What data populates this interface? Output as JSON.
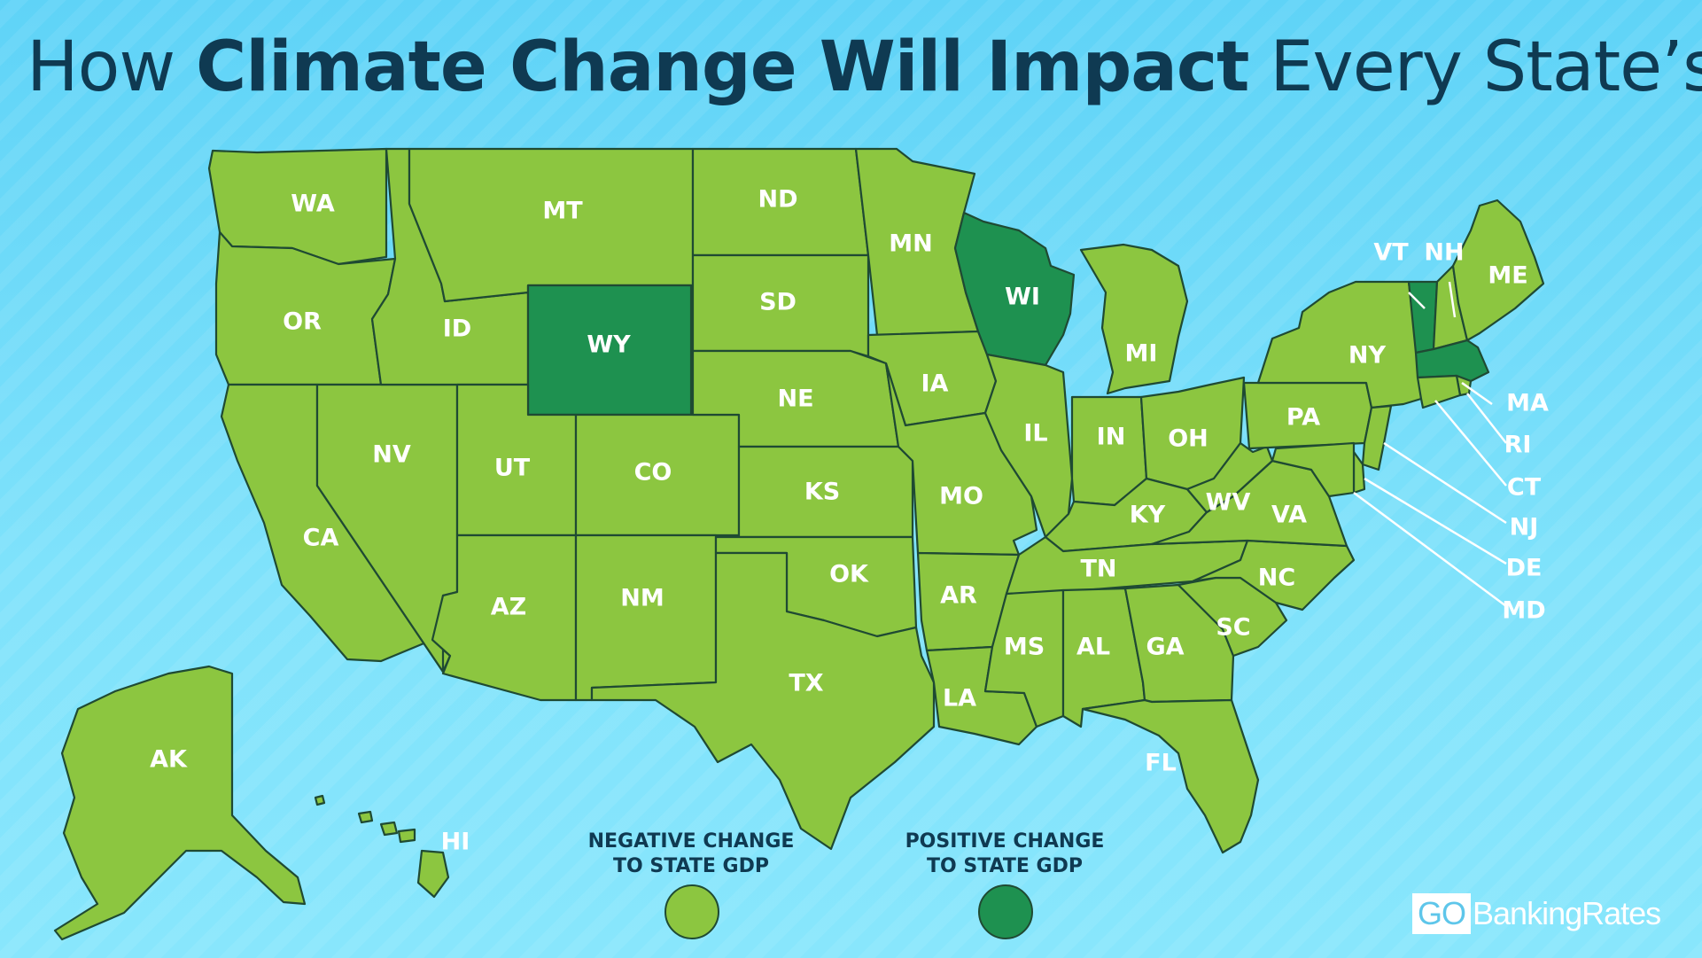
{
  "title": {
    "prefix": "How ",
    "emphasis": "Climate Change Will Impact",
    "suffix": " Every State’s GDP"
  },
  "colors": {
    "negative": "#8cc640",
    "positive": "#1e9150",
    "border": "#1f4a33",
    "background": "#6fdcf9",
    "title": "#0f3a52"
  },
  "legend": {
    "negative": {
      "line1": "NEGATIVE CHANGE",
      "line2": "TO STATE GDP"
    },
    "positive": {
      "line1": "POSITIVE CHANGE",
      "line2": "TO STATE GDP"
    }
  },
  "states": [
    {
      "code": "WA",
      "impact": "negative"
    },
    {
      "code": "OR",
      "impact": "negative"
    },
    {
      "code": "CA",
      "impact": "negative"
    },
    {
      "code": "NV",
      "impact": "negative"
    },
    {
      "code": "ID",
      "impact": "negative"
    },
    {
      "code": "MT",
      "impact": "negative"
    },
    {
      "code": "WY",
      "impact": "positive"
    },
    {
      "code": "UT",
      "impact": "negative"
    },
    {
      "code": "CO",
      "impact": "negative"
    },
    {
      "code": "AZ",
      "impact": "negative"
    },
    {
      "code": "NM",
      "impact": "negative"
    },
    {
      "code": "ND",
      "impact": "negative"
    },
    {
      "code": "SD",
      "impact": "negative"
    },
    {
      "code": "NE",
      "impact": "negative"
    },
    {
      "code": "KS",
      "impact": "negative"
    },
    {
      "code": "OK",
      "impact": "negative"
    },
    {
      "code": "TX",
      "impact": "negative"
    },
    {
      "code": "MN",
      "impact": "negative"
    },
    {
      "code": "IA",
      "impact": "negative"
    },
    {
      "code": "MO",
      "impact": "negative"
    },
    {
      "code": "AR",
      "impact": "negative"
    },
    {
      "code": "LA",
      "impact": "negative"
    },
    {
      "code": "WI",
      "impact": "positive"
    },
    {
      "code": "IL",
      "impact": "negative"
    },
    {
      "code": "MI",
      "impact": "negative"
    },
    {
      "code": "IN",
      "impact": "negative"
    },
    {
      "code": "OH",
      "impact": "negative"
    },
    {
      "code": "KY",
      "impact": "negative"
    },
    {
      "code": "TN",
      "impact": "negative"
    },
    {
      "code": "MS",
      "impact": "negative"
    },
    {
      "code": "AL",
      "impact": "negative"
    },
    {
      "code": "GA",
      "impact": "negative"
    },
    {
      "code": "FL",
      "impact": "negative"
    },
    {
      "code": "SC",
      "impact": "negative"
    },
    {
      "code": "NC",
      "impact": "negative"
    },
    {
      "code": "VA",
      "impact": "negative"
    },
    {
      "code": "WV",
      "impact": "negative"
    },
    {
      "code": "PA",
      "impact": "negative"
    },
    {
      "code": "NY",
      "impact": "negative"
    },
    {
      "code": "VT",
      "impact": "positive"
    },
    {
      "code": "NH",
      "impact": "negative"
    },
    {
      "code": "ME",
      "impact": "negative"
    },
    {
      "code": "MA",
      "impact": "positive"
    },
    {
      "code": "RI",
      "impact": "negative"
    },
    {
      "code": "CT",
      "impact": "negative"
    },
    {
      "code": "NJ",
      "impact": "negative"
    },
    {
      "code": "DE",
      "impact": "negative"
    },
    {
      "code": "MD",
      "impact": "negative"
    },
    {
      "code": "AK",
      "impact": "negative"
    },
    {
      "code": "HI",
      "impact": "negative"
    }
  ],
  "logo": {
    "box": "GO",
    "rest": "BankingRates"
  }
}
